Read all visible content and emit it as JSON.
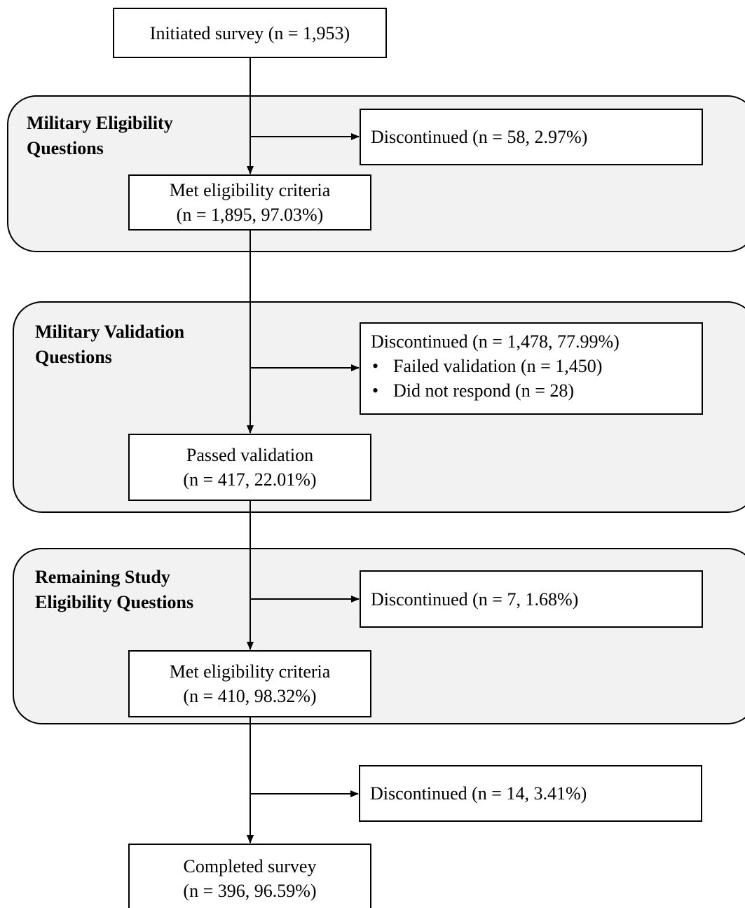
{
  "diagram": {
    "start": {
      "text": "Initiated survey (n = 1,953)"
    },
    "phases": [
      {
        "label": "Military Eligibility\nQuestions",
        "discontinued": {
          "title": "Discontinued (n = 58, 2.97%)",
          "bullets": []
        },
        "result": {
          "line1": "Met eligibility criteria",
          "line2": "(n = 1,895, 97.03%)"
        }
      },
      {
        "label": "Military Validation\nQuestions",
        "discontinued": {
          "title": "Discontinued (n = 1,478, 77.99%)",
          "bullets": [
            "Failed validation (n = 1,450)",
            "Did not respond (n = 28)"
          ]
        },
        "result": {
          "line1": "Passed validation",
          "line2": "(n = 417, 22.01%)"
        }
      },
      {
        "label": "Remaining Study\nEligibility Questions",
        "discontinued": {
          "title": "Discontinued (n = 7, 1.68%)",
          "bullets": []
        },
        "result": {
          "line1": "Met eligibility criteria",
          "line2": "(n = 410, 98.32%)"
        }
      }
    ],
    "final_discontinued": {
      "title": "Discontinued (n = 14, 3.41%)"
    },
    "end": {
      "line1": "Completed survey",
      "line2": "(n = 396, 96.59%)"
    }
  }
}
